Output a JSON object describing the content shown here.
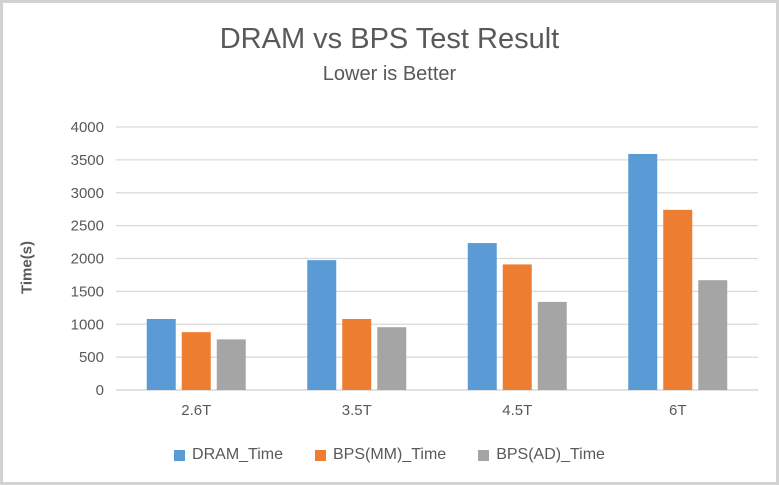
{
  "chart_data": {
    "type": "bar",
    "title": "DRAM vs BPS Test Result",
    "subtitle": "Lower is Better",
    "ylabel": "Time(s)",
    "xlabel": "",
    "categories": [
      "2.6T",
      "3.5T",
      "4.5T",
      "6T"
    ],
    "series": [
      {
        "name": "DRAM_Time",
        "color": "#5B9BD5",
        "values": [
          1080,
          1975,
          2235,
          3590
        ]
      },
      {
        "name": "BPS(MM)_Time",
        "color": "#ED7D31",
        "values": [
          880,
          1080,
          1910,
          2740
        ]
      },
      {
        "name": "BPS(AD)_Time",
        "color": "#A5A5A5",
        "values": [
          770,
          955,
          1340,
          1670
        ]
      }
    ],
    "ylim": [
      0,
      4000
    ],
    "yticks": [
      0,
      500,
      1000,
      1500,
      2000,
      2500,
      3000,
      3500,
      4000
    ],
    "grid": true,
    "legend_position": "bottom",
    "text_color": "#595959",
    "gridline_color": "#D9D9D9",
    "axisline_color": "#CFCFCF"
  }
}
